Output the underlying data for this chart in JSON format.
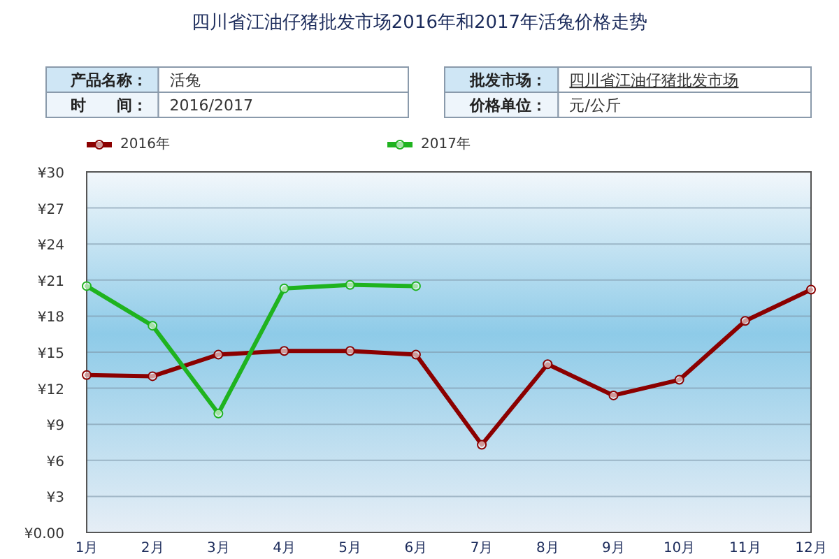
{
  "chart_data": {
    "type": "line",
    "title": "四川省江油仔猪批发市场2016年和2017年活兔价格走势",
    "annotations": [
      "产品名称：",
      "活兔",
      "时　　间：",
      "2016/2017",
      "批发市场：",
      "四川省江油仔猪批发市场",
      "价格单位：",
      "元/公斤"
    ],
    "categories": [
      "1月",
      "2月",
      "3月",
      "4月",
      "5月",
      "6月",
      "7月",
      "8月",
      "9月",
      "10月",
      "11月",
      "12月"
    ],
    "series": [
      {
        "name": "2016年",
        "color": "#8b0000",
        "values": [
          13.1,
          13.0,
          14.8,
          15.1,
          15.1,
          14.8,
          7.3,
          14.0,
          11.4,
          12.7,
          17.6,
          20.2
        ]
      },
      {
        "name": "2017年",
        "color": "#1fb31f",
        "values": [
          20.5,
          17.2,
          9.9,
          20.3,
          20.6,
          20.5,
          null,
          null,
          null,
          null,
          null,
          null
        ]
      }
    ],
    "ylim": [
      0,
      30
    ],
    "yticks": [
      {
        "value": 0,
        "label": "¥0.00"
      },
      {
        "value": 3,
        "label": "¥3"
      },
      {
        "value": 6,
        "label": "¥6"
      },
      {
        "value": 9,
        "label": "¥9"
      },
      {
        "value": 12,
        "label": "¥12"
      },
      {
        "value": 15,
        "label": "¥15"
      },
      {
        "value": 18,
        "label": "¥18"
      },
      {
        "value": 21,
        "label": "¥21"
      },
      {
        "value": 24,
        "label": "¥24"
      },
      {
        "value": 27,
        "label": "¥27"
      },
      {
        "value": 30,
        "label": "¥30"
      }
    ],
    "grid": "y",
    "legend": "top",
    "marker": "circle",
    "line_style": "solid"
  }
}
